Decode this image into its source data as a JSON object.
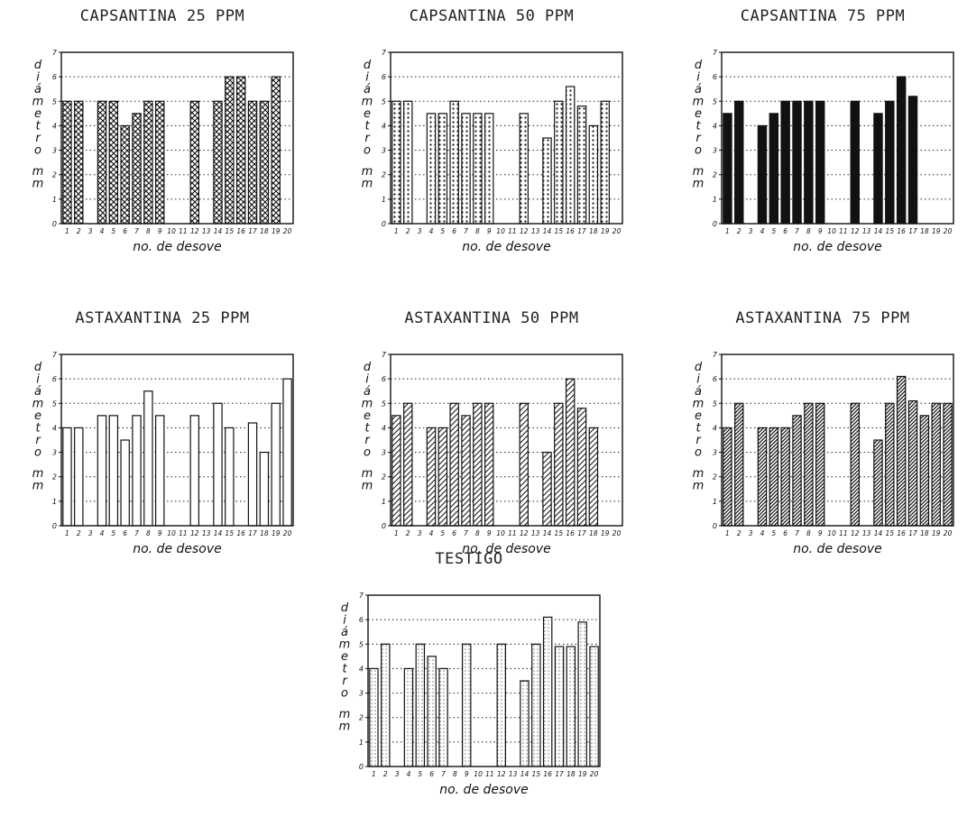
{
  "page": {
    "background": "#ffffff",
    "ink": "#111111"
  },
  "chart_data": [
    {
      "type": "bar",
      "title": "CAPSANTINA 25 PPM",
      "xlabel": "no. de desove",
      "ylabel": "diámetro mm",
      "ylim": [
        0,
        7
      ],
      "yticks": [
        "0",
        "1",
        "2",
        "3",
        "4",
        "5",
        "6",
        "7"
      ],
      "grid": "horizontal dotted",
      "fill": "crosshatch",
      "categories": [
        "1",
        "2",
        "3",
        "4",
        "5",
        "6",
        "7",
        "8",
        "9",
        "10",
        "11",
        "12",
        "13",
        "14",
        "15",
        "16",
        "17",
        "18",
        "19",
        "20"
      ],
      "values": [
        5,
        5,
        null,
        5,
        5,
        4,
        4.5,
        5,
        5,
        null,
        null,
        5,
        null,
        5,
        6,
        6,
        5,
        5,
        6,
        null
      ]
    },
    {
      "type": "bar",
      "title": "CAPSANTINA 50 PPM",
      "xlabel": "no. de desove",
      "ylabel": "diámetro mm",
      "ylim": [
        0,
        7
      ],
      "yticks": [
        "0",
        "1",
        "2",
        "3",
        "4",
        "5",
        "6",
        "7"
      ],
      "grid": "horizontal dotted",
      "fill": "dots",
      "categories": [
        "1",
        "2",
        "3",
        "4",
        "5",
        "6",
        "7",
        "8",
        "9",
        "10",
        "11",
        "12",
        "13",
        "14",
        "15",
        "16",
        "17",
        "18",
        "19",
        "20"
      ],
      "values": [
        5,
        5,
        null,
        4.5,
        4.5,
        5,
        4.5,
        4.5,
        4.5,
        null,
        null,
        4.5,
        null,
        3.5,
        5,
        5.6,
        4.8,
        4,
        5,
        null
      ]
    },
    {
      "type": "bar",
      "title": "CAPSANTINA 75 PPM",
      "xlabel": "no. de desove",
      "ylabel": "diámetro mm",
      "ylim": [
        0,
        7
      ],
      "yticks": [
        "0",
        "1",
        "2",
        "3",
        "4",
        "5",
        "6",
        "7"
      ],
      "grid": "horizontal dotted",
      "fill": "solid",
      "categories": [
        "1",
        "2",
        "3",
        "4",
        "5",
        "6",
        "7",
        "8",
        "9",
        "10",
        "11",
        "12",
        "13",
        "14",
        "15",
        "16",
        "17",
        "18",
        "19",
        "20"
      ],
      "values": [
        4.5,
        5,
        null,
        4,
        4.5,
        5,
        5,
        5,
        5,
        null,
        null,
        5,
        null,
        4.5,
        5,
        6,
        5.2,
        null,
        null,
        null
      ]
    },
    {
      "type": "bar",
      "title": "ASTAXANTINA 25 PPM",
      "xlabel": "no. de desove",
      "ylabel": "diámetro mm",
      "ylim": [
        0,
        7
      ],
      "yticks": [
        "0",
        "1",
        "2",
        "3",
        "4",
        "5",
        "6",
        "7"
      ],
      "grid": "horizontal dotted",
      "fill": "empty",
      "categories": [
        "1",
        "2",
        "3",
        "4",
        "5",
        "6",
        "7",
        "8",
        "9",
        "10",
        "11",
        "12",
        "13",
        "14",
        "15",
        "16",
        "17",
        "18",
        "19",
        "20"
      ],
      "values": [
        4,
        4,
        null,
        4.5,
        4.5,
        3.5,
        4.5,
        5.5,
        4.5,
        null,
        null,
        4.5,
        null,
        5,
        4,
        null,
        4.2,
        3,
        5,
        6
      ]
    },
    {
      "type": "bar",
      "title": "ASTAXANTINA 50 PPM",
      "xlabel": "no. de desove",
      "ylabel": "diámetro mm",
      "ylim": [
        0,
        7
      ],
      "yticks": [
        "0",
        "1",
        "2",
        "3",
        "4",
        "5",
        "6",
        "7"
      ],
      "grid": "horizontal dotted",
      "fill": "diagonal",
      "categories": [
        "1",
        "2",
        "3",
        "4",
        "5",
        "6",
        "7",
        "8",
        "9",
        "10",
        "11",
        "12",
        "13",
        "14",
        "15",
        "16",
        "17",
        "18",
        "19",
        "20"
      ],
      "values": [
        4.5,
        5,
        null,
        4,
        4,
        5,
        4.5,
        5,
        5,
        null,
        null,
        5,
        null,
        3,
        5,
        6,
        4.8,
        4,
        null,
        null
      ]
    },
    {
      "type": "bar",
      "title": "ASTAXANTINA 75 PPM",
      "xlabel": "no. de desove",
      "ylabel": "diámetro mm",
      "ylim": [
        0,
        7
      ],
      "yticks": [
        "0",
        "1",
        "2",
        "3",
        "4",
        "5",
        "6",
        "7"
      ],
      "grid": "horizontal dotted",
      "fill": "diagonal-dense",
      "categories": [
        "1",
        "2",
        "3",
        "4",
        "5",
        "6",
        "7",
        "8",
        "9",
        "10",
        "11",
        "12",
        "13",
        "14",
        "15",
        "16",
        "17",
        "18",
        "19",
        "20"
      ],
      "values": [
        4,
        5,
        null,
        4,
        4,
        4,
        4.5,
        5,
        5,
        null,
        null,
        5,
        null,
        3.5,
        5,
        6.1,
        5.1,
        4.5,
        5,
        5
      ]
    },
    {
      "type": "bar",
      "title": "TESTIGO",
      "xlabel": "no. de desove",
      "ylabel": "diámetro mm",
      "ylim": [
        0,
        7
      ],
      "yticks": [
        "0",
        "1",
        "2",
        "3",
        "4",
        "5",
        "6",
        "7"
      ],
      "grid": "horizontal dotted",
      "fill": "fine-dots",
      "categories": [
        "1",
        "2",
        "3",
        "4",
        "5",
        "6",
        "7",
        "8",
        "9",
        "10",
        "11",
        "12",
        "13",
        "14",
        "15",
        "16",
        "17",
        "18",
        "19",
        "20"
      ],
      "values": [
        4,
        5,
        null,
        4,
        5,
        4.5,
        4,
        null,
        5,
        null,
        null,
        5,
        null,
        3.5,
        5,
        6.1,
        4.9,
        4.9,
        5.9,
        4.9
      ]
    }
  ]
}
